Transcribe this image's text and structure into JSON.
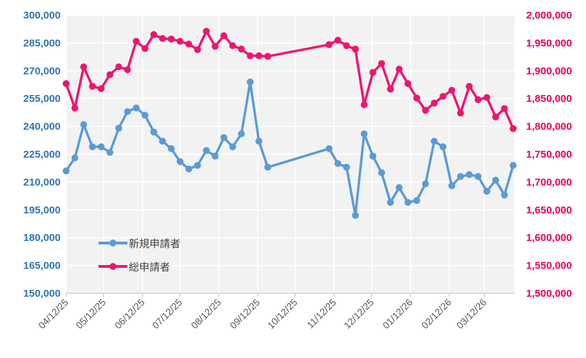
{
  "chart_data": {
    "type": "line",
    "title": "",
    "xlabel": "",
    "ylabel": "",
    "x_tick_labels": [
      "04/12/25",
      "05/12/25",
      "06/12/25",
      "07/12/25",
      "08/12/25",
      "09/12/25",
      "10/12/25",
      "11/12/25",
      "12/12/25",
      "01/12/26",
      "02/12/26",
      "03/12/26"
    ],
    "y_left": {
      "min": 150000,
      "max": 300000,
      "step": 15000,
      "tick_labels": [
        "150,000",
        "165,000",
        "180,000",
        "195,000",
        "210,000",
        "225,000",
        "240,000",
        "255,000",
        "270,000",
        "285,000",
        "300,000"
      ]
    },
    "y_right": {
      "min": 1500000,
      "max": 2000000,
      "step": 50000,
      "tick_labels": [
        "1,500,000",
        "1,550,000",
        "1,600,000",
        "1,650,000",
        "1,700,000",
        "1,750,000",
        "1,800,000",
        "1,850,000",
        "1,900,000",
        "1,950,000",
        "2,000,000"
      ]
    },
    "grid": true,
    "legend_position": "inside-bottom-left",
    "colors": {
      "new": "#5B9BD5",
      "total": "#F0146E",
      "left_axis_text": "#2E74B5",
      "right_axis_text": "#E6005C",
      "plot_bg": "#F2F2F2"
    },
    "series": [
      {
        "name": "新規申請者",
        "axis": "left",
        "points": [
          [
            "2025-04-12",
            216000
          ],
          [
            "2025-04-19",
            223000
          ],
          [
            "2025-04-26",
            241000
          ],
          [
            "2025-05-03",
            229000
          ],
          [
            "2025-05-10",
            229000
          ],
          [
            "2025-05-17",
            226000
          ],
          [
            "2025-05-24",
            239000
          ],
          [
            "2025-05-31",
            248000
          ],
          [
            "2025-06-07",
            250000
          ],
          [
            "2025-06-14",
            246000
          ],
          [
            "2025-06-21",
            237000
          ],
          [
            "2025-06-28",
            232000
          ],
          [
            "2025-07-05",
            228000
          ],
          [
            "2025-07-12",
            221000
          ],
          [
            "2025-07-19",
            217000
          ],
          [
            "2025-07-26",
            219000
          ],
          [
            "2025-08-02",
            227000
          ],
          [
            "2025-08-09",
            224000
          ],
          [
            "2025-08-16",
            234000
          ],
          [
            "2025-08-23",
            229000
          ],
          [
            "2025-08-30",
            236000
          ],
          [
            "2025-09-06",
            264000
          ],
          [
            "2025-09-13",
            232000
          ],
          [
            "2025-09-20",
            218000
          ],
          [
            "2025-11-08",
            228000
          ],
          [
            "2025-11-15",
            220000
          ],
          [
            "2025-11-22",
            218000
          ],
          [
            "2025-11-29",
            192000
          ],
          [
            "2025-12-06",
            236000
          ],
          [
            "2025-12-13",
            224000
          ],
          [
            "2025-12-20",
            215000
          ],
          [
            "2025-12-27",
            199000
          ],
          [
            "2026-01-03",
            207000
          ],
          [
            "2026-01-10",
            199000
          ],
          [
            "2026-01-17",
            200000
          ],
          [
            "2026-01-24",
            209000
          ],
          [
            "2026-01-31",
            232000
          ],
          [
            "2026-02-07",
            229000
          ],
          [
            "2026-02-14",
            208000
          ],
          [
            "2026-02-21",
            213000
          ],
          [
            "2026-02-28",
            214000
          ],
          [
            "2026-03-07",
            213000
          ],
          [
            "2026-03-14",
            205000
          ],
          [
            "2026-03-21",
            211000
          ],
          [
            "2026-03-28",
            203000
          ],
          [
            "2026-04-04",
            219000
          ]
        ]
      },
      {
        "name": "総申請者",
        "axis": "right",
        "points": [
          [
            "2025-04-12",
            1877000
          ],
          [
            "2025-04-19",
            1833000
          ],
          [
            "2025-04-26",
            1907000
          ],
          [
            "2025-05-03",
            1872000
          ],
          [
            "2025-05-10",
            1868000
          ],
          [
            "2025-05-17",
            1893000
          ],
          [
            "2025-05-24",
            1907000
          ],
          [
            "2025-05-31",
            1902000
          ],
          [
            "2025-06-07",
            1953000
          ],
          [
            "2025-06-14",
            1940000
          ],
          [
            "2025-06-21",
            1965000
          ],
          [
            "2025-06-28",
            1958000
          ],
          [
            "2025-07-05",
            1957000
          ],
          [
            "2025-07-12",
            1953000
          ],
          [
            "2025-07-19",
            1948000
          ],
          [
            "2025-07-26",
            1938000
          ],
          [
            "2025-08-02",
            1971000
          ],
          [
            "2025-08-09",
            1944000
          ],
          [
            "2025-08-16",
            1963000
          ],
          [
            "2025-08-23",
            1945000
          ],
          [
            "2025-08-30",
            1939000
          ],
          [
            "2025-09-06",
            1927000
          ],
          [
            "2025-09-13",
            1927000
          ],
          [
            "2025-09-20",
            1926000
          ],
          [
            "2025-11-08",
            1947000
          ],
          [
            "2025-11-15",
            1955000
          ],
          [
            "2025-11-22",
            1945000
          ],
          [
            "2025-11-29",
            1939000
          ],
          [
            "2025-12-06",
            1839000
          ],
          [
            "2025-12-13",
            1897000
          ],
          [
            "2025-12-20",
            1913000
          ],
          [
            "2025-12-27",
            1867000
          ],
          [
            "2026-01-03",
            1903000
          ],
          [
            "2026-01-10",
            1877000
          ],
          [
            "2026-01-17",
            1851000
          ],
          [
            "2026-01-24",
            1829000
          ],
          [
            "2026-01-31",
            1842000
          ],
          [
            "2026-02-07",
            1854000
          ],
          [
            "2026-02-14",
            1865000
          ],
          [
            "2026-02-21",
            1824000
          ],
          [
            "2026-02-28",
            1872000
          ],
          [
            "2026-03-07",
            1848000
          ],
          [
            "2026-03-14",
            1852000
          ],
          [
            "2026-03-21",
            1817000
          ],
          [
            "2026-03-28",
            1832000
          ],
          [
            "2026-04-04",
            1796000
          ]
        ]
      }
    ]
  }
}
